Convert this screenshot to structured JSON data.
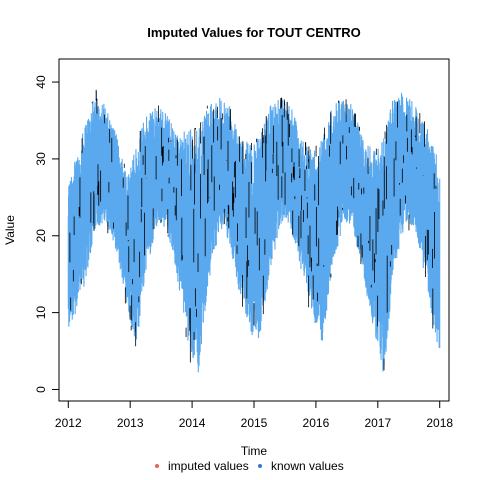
{
  "chart_data": {
    "type": "line",
    "title": "Imputed Values for  TOUT CENTRO",
    "xlabel": "Time",
    "ylabel": "Value",
    "xlim": [
      2011.85,
      2018.15
    ],
    "ylim": [
      -1.5,
      43
    ],
    "x_ticks": [
      2012,
      2013,
      2014,
      2015,
      2016,
      2017,
      2018
    ],
    "x_tick_labels": [
      "2012",
      "2013",
      "2014",
      "2015",
      "2016",
      "2017",
      "2018"
    ],
    "y_ticks": [
      0,
      10,
      20,
      30,
      40
    ],
    "y_tick_labels": [
      "0",
      "10",
      "20",
      "30",
      "40"
    ],
    "legend": {
      "placement": "bottom",
      "entries": [
        {
          "label": "imputed values",
          "color": "#e8625a"
        },
        {
          "label": "known values",
          "color": "#3a78c9"
        }
      ]
    },
    "series": [
      {
        "name": "known values",
        "color": "#5aa9ef",
        "x": [
          2012.0,
          2012.25,
          2012.45,
          2012.6,
          2012.75,
          2012.95,
          2013.1,
          2013.25,
          2013.45,
          2013.6,
          2013.75,
          2013.95,
          2014.1,
          2014.25,
          2014.45,
          2014.6,
          2014.75,
          2014.95,
          2015.1,
          2015.25,
          2015.45,
          2015.6,
          2015.75,
          2015.95,
          2016.1,
          2016.25,
          2016.45,
          2016.6,
          2016.75,
          2016.95,
          2017.1,
          2017.25,
          2017.45,
          2017.6,
          2017.75,
          2017.95,
          2018.0
        ],
        "lower": [
          6,
          12,
          20,
          21,
          18,
          10,
          4,
          14,
          21,
          20,
          14,
          4,
          0,
          12,
          20,
          18,
          12,
          6,
          4,
          14,
          21,
          20,
          15,
          8,
          4,
          14,
          21,
          20,
          14,
          6,
          0,
          14,
          21,
          20,
          14,
          5,
          1
        ],
        "upper": [
          27,
          34,
          39,
          37,
          34,
          28,
          32,
          36,
          37,
          36,
          33,
          34,
          34,
          37,
          38,
          37,
          33,
          32,
          33,
          37,
          38,
          37,
          33,
          31,
          33,
          37,
          38,
          37,
          33,
          31,
          33,
          38,
          39,
          37,
          35,
          31,
          28
        ]
      }
    ],
    "imputed_marks": {
      "name": "imputed values",
      "color": "#000000"
    }
  }
}
